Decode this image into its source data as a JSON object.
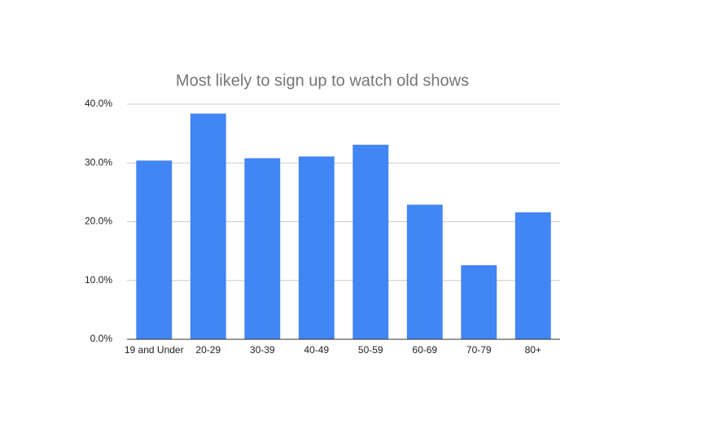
{
  "chart_data": {
    "type": "bar",
    "title": "Most likely to sign up to watch old shows",
    "categories": [
      "19 and Under",
      "20-29",
      "30-39",
      "40-49",
      "50-59",
      "60-69",
      "70-79",
      "80+"
    ],
    "values": [
      30.4,
      38.4,
      30.8,
      31.1,
      33.1,
      22.9,
      12.6,
      21.6
    ],
    "color": "#4285f4",
    "ylim": [
      0,
      40
    ],
    "yticks": [
      {
        "value": 0,
        "label": "0.0%"
      },
      {
        "value": 10,
        "label": "10.0%"
      },
      {
        "value": 20,
        "label": "20.0%"
      },
      {
        "value": 30,
        "label": "30.0%"
      },
      {
        "value": 40,
        "label": "40.0%"
      }
    ],
    "grid": true
  }
}
